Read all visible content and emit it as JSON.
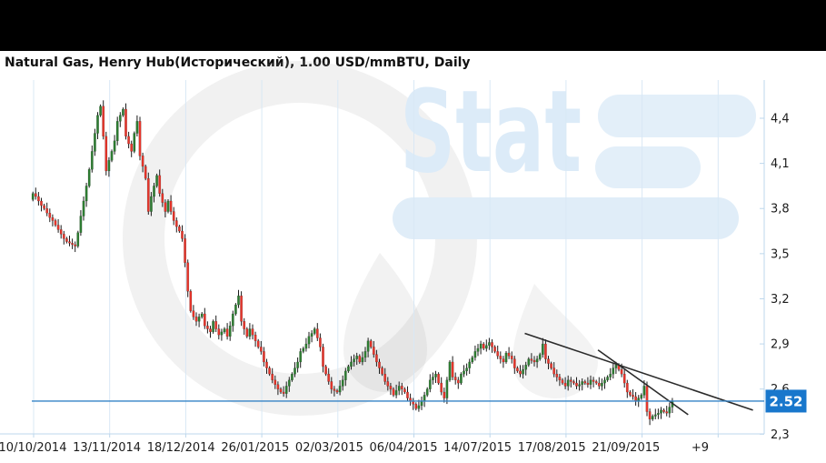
{
  "window": {
    "top_bar_color": "#000000",
    "background": "#ffffff"
  },
  "header": {
    "title": "Natural Gas, Henry Hub(Исторический), 1.00 USD/mmBTU, Daily"
  },
  "watermark": {
    "brand_gray": "Oil",
    "brand_blue": "Stat",
    "gray_color": "#9a9a9a",
    "blue_color": "#dcebf8"
  },
  "chart_data": {
    "type": "candlestick",
    "title": "Natural Gas, Henry Hub(Исторический), 1.00 USD/mmBTU, Daily",
    "x_tick_labels": [
      "10/10/2014",
      "13/11/2014",
      "18/12/2014",
      "26/01/2015",
      "02/03/2015",
      "06/04/2015",
      "14/07/2015",
      "17/08/2015",
      "21/09/2015",
      "+9"
    ],
    "y_ticks": [
      4.4,
      4.1,
      3.8,
      3.5,
      3.2,
      2.9,
      2.6,
      2.3
    ],
    "y_tick_labels": [
      "4,4",
      "4,1",
      "3,8",
      "3,5",
      "3,2",
      "2,9",
      "2,6",
      "2,3"
    ],
    "ylim": [
      2.29,
      4.66
    ],
    "grid": "vertical-only",
    "first_open": 3.86,
    "closes": [
      3.9,
      3.88,
      3.85,
      3.82,
      3.8,
      3.77,
      3.74,
      3.72,
      3.69,
      3.66,
      3.63,
      3.6,
      3.58,
      3.57,
      3.56,
      3.55,
      3.64,
      3.75,
      3.85,
      3.95,
      4.06,
      4.18,
      4.3,
      4.42,
      4.48,
      4.28,
      4.05,
      4.12,
      4.18,
      4.25,
      4.38,
      4.42,
      4.46,
      4.28,
      4.23,
      4.18,
      4.3,
      4.38,
      4.15,
      4.08,
      4.0,
      3.78,
      3.88,
      3.95,
      4.02,
      3.9,
      3.84,
      3.78,
      3.85,
      3.78,
      3.72,
      3.68,
      3.65,
      3.6,
      3.44,
      3.25,
      3.12,
      3.08,
      3.05,
      3.08,
      3.1,
      3.02,
      3.0,
      2.98,
      3.05,
      3.0,
      2.96,
      2.98,
      3.0,
      2.95,
      3.02,
      3.1,
      3.16,
      3.22,
      3.05,
      3.0,
      2.95,
      3.0,
      2.96,
      2.92,
      2.88,
      2.85,
      2.78,
      2.74,
      2.7,
      2.66,
      2.63,
      2.6,
      2.58,
      2.57,
      2.62,
      2.66,
      2.7,
      2.74,
      2.78,
      2.85,
      2.87,
      2.9,
      2.95,
      2.97,
      3.0,
      2.94,
      2.88,
      2.75,
      2.7,
      2.65,
      2.6,
      2.59,
      2.58,
      2.62,
      2.66,
      2.72,
      2.75,
      2.78,
      2.8,
      2.82,
      2.78,
      2.81,
      2.85,
      2.92,
      2.88,
      2.83,
      2.78,
      2.74,
      2.7,
      2.65,
      2.62,
      2.6,
      2.56,
      2.59,
      2.62,
      2.6,
      2.58,
      2.54,
      2.52,
      2.5,
      2.47,
      2.49,
      2.52,
      2.56,
      2.6,
      2.66,
      2.68,
      2.7,
      2.64,
      2.58,
      2.54,
      2.66,
      2.78,
      2.68,
      2.66,
      2.64,
      2.7,
      2.72,
      2.74,
      2.78,
      2.81,
      2.85,
      2.87,
      2.9,
      2.87,
      2.89,
      2.91,
      2.88,
      2.85,
      2.82,
      2.8,
      2.78,
      2.84,
      2.82,
      2.8,
      2.74,
      2.72,
      2.7,
      2.73,
      2.76,
      2.8,
      2.79,
      2.78,
      2.8,
      2.83,
      2.9,
      2.8,
      2.77,
      2.74,
      2.7,
      2.68,
      2.66,
      2.64,
      2.62,
      2.66,
      2.65,
      2.64,
      2.62,
      2.63,
      2.65,
      2.64,
      2.63,
      2.66,
      2.65,
      2.64,
      2.62,
      2.64,
      2.66,
      2.68,
      2.7,
      2.74,
      2.76,
      2.73,
      2.7,
      2.64,
      2.58,
      2.56,
      2.55,
      2.52,
      2.54,
      2.56,
      2.62,
      2.45,
      2.4,
      2.42,
      2.43,
      2.44,
      2.46,
      2.45,
      2.44,
      2.48,
      2.52
    ],
    "price_line": {
      "value": 2.52,
      "label": "2.52"
    },
    "trendlines": [
      {
        "from_index": 175,
        "from_price": 2.97,
        "to_index": 256,
        "to_price": 2.46
      },
      {
        "from_index": 201,
        "from_price": 2.86,
        "to_index": 233,
        "to_price": 2.43
      }
    ],
    "colors": {
      "up": "#2e7d32",
      "down": "#e6352b",
      "wick": "#1c1c1c",
      "grid": "#d9e8f5",
      "axis": "#bdd7ec",
      "tick_text": "#1c1c1c",
      "trendline": "#2b2b2b",
      "price_line": "#3583c6",
      "price_label_bg": "#1877cc",
      "price_label_text": "#ffffff"
    }
  }
}
